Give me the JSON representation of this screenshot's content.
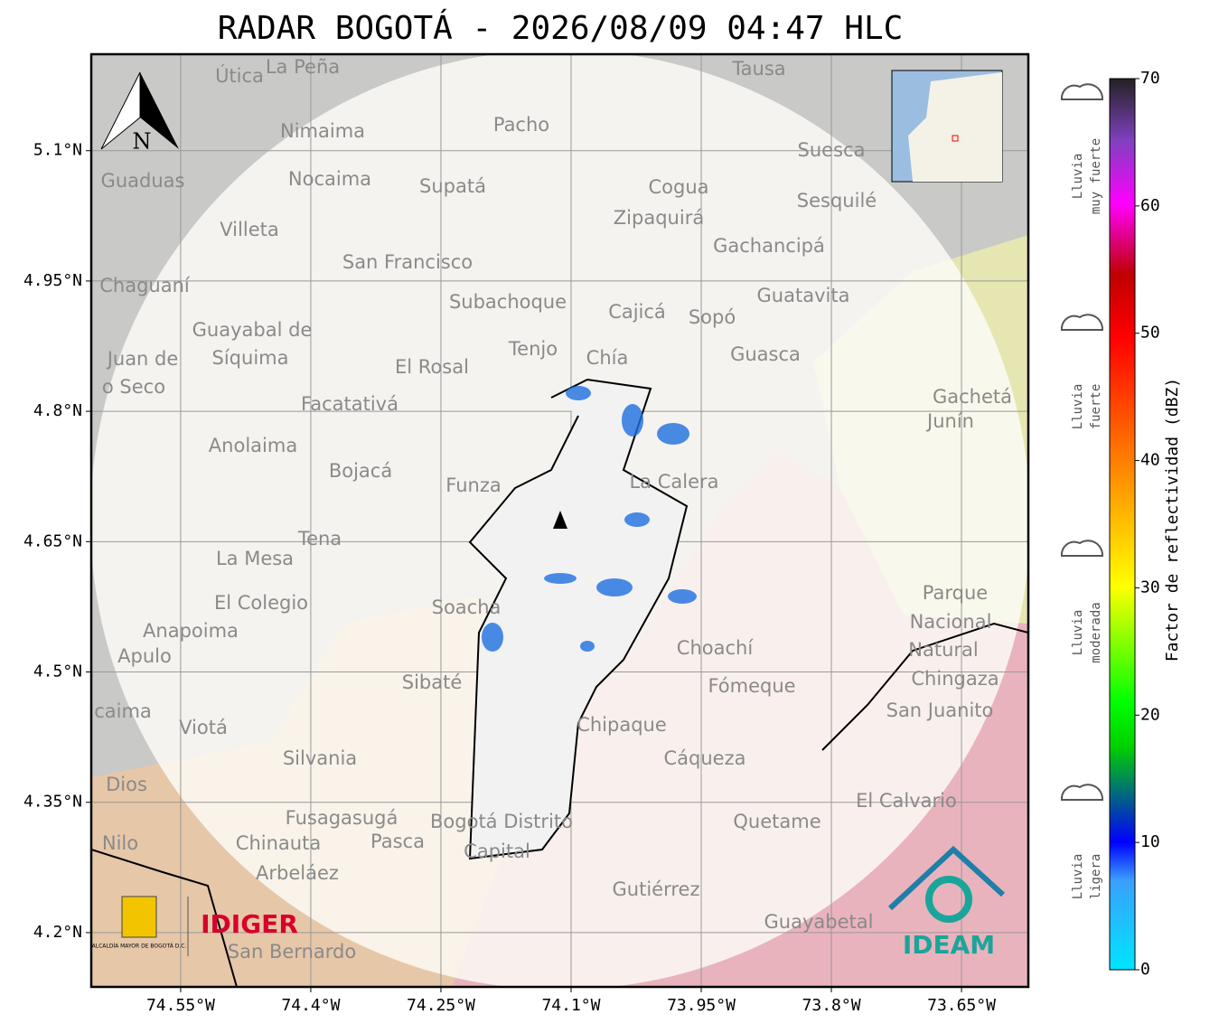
{
  "map": {
    "title": "RADAR BOGOTÁ - 2026/08/09 04:47 HLC",
    "xlim": [
      -74.653,
      -73.573
    ],
    "ylim": [
      4.1375,
      5.211
    ],
    "xticks": [
      {
        "value": -74.55,
        "label": "74.55°W"
      },
      {
        "value": -74.4,
        "label": "74.4°W"
      },
      {
        "value": -74.25,
        "label": "74.25°W"
      },
      {
        "value": -74.1,
        "label": "74.1°W"
      },
      {
        "value": -73.95,
        "label": "73.95°W"
      },
      {
        "value": -73.8,
        "label": "73.8°W"
      },
      {
        "value": -73.65,
        "label": "73.65°W"
      }
    ],
    "yticks": [
      {
        "value": 5.1,
        "label": "5.1°N"
      },
      {
        "value": 4.95,
        "label": "4.95°N"
      },
      {
        "value": 4.8,
        "label": "4.8°N"
      },
      {
        "value": 4.65,
        "label": "4.65°N"
      },
      {
        "value": 4.5,
        "label": "4.5°N"
      },
      {
        "value": 4.35,
        "label": "4.35°N"
      },
      {
        "value": 4.2,
        "label": "4.2°N"
      }
    ],
    "places": [
      "Útica",
      "La Peña",
      "Tausa",
      "Pacho",
      "Nimaima",
      "Guaduas",
      "Nocaima",
      "Supatá",
      "Cogua",
      "Suesca",
      "Sesquilé",
      "Villeta",
      "Zipaquirá",
      "Gachancipá",
      "San Francisco",
      "Chaguaní",
      "Guatavita",
      "Subachoque",
      "Cajicá",
      "Sopó",
      "Guayabal de",
      "Síquima",
      "Tenjo",
      "Chía",
      "Guasca",
      "Juan de",
      "o Seco",
      "El Rosal",
      "Gachetá",
      "Junín",
      "Facatativá",
      "Anolaima",
      "Bojacá",
      "Funza",
      "La Calera",
      "Tena",
      "La Mesa",
      "El Colegio",
      "Soacha",
      "Parque",
      "Nacional",
      "Natural",
      "Chingaza",
      "Anapoima",
      "Apulo",
      "Choachí",
      "Sibaté",
      "Fómeque",
      "San Juanito",
      "caima",
      "Viotá",
      "Chipaque",
      "Silvania",
      "Cáqueza",
      "Dios",
      "El Calvario",
      "Fusagasugá",
      "Bogotá Distrito",
      "Capital",
      "Quetame",
      "Nilo",
      "Chinauta",
      "Pasca",
      "Arbeláez",
      "Gutiérrez",
      "Guayabetal",
      "San Bernardo"
    ],
    "north": "N",
    "logos": {
      "alcaldia": "ALCALDÍA MAYOR DE BOGOTÁ D.C.",
      "idiger": "IDIGER",
      "ideam": "IDEAM"
    },
    "colorbar": {
      "label": "Factor de reflectividad (dBZ)",
      "lim": [
        0,
        70
      ],
      "ticks": [
        0,
        10,
        20,
        30,
        40,
        50,
        60,
        70
      ]
    },
    "rain_levels": [
      [
        "Lluvia",
        "muy fuerte"
      ],
      [
        "Lluvia",
        "fuerte"
      ],
      [
        "Lluvia",
        "moderada"
      ],
      [
        "Lluvia",
        "ligera"
      ]
    ]
  }
}
